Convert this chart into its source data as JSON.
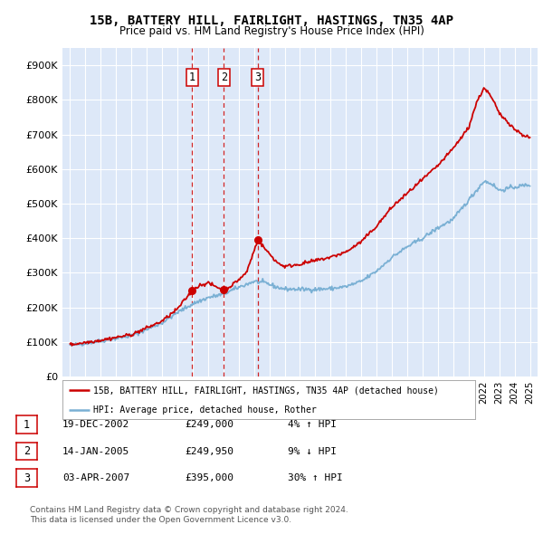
{
  "title": "15B, BATTERY HILL, FAIRLIGHT, HASTINGS, TN35 4AP",
  "subtitle": "Price paid vs. HM Land Registry's House Price Index (HPI)",
  "bg_color": "#dde8f8",
  "hpi_color": "#7ab0d4",
  "sale_color": "#cc0000",
  "dashed_color": "#cc0000",
  "ylim": [
    0,
    950000
  ],
  "yticks": [
    0,
    100000,
    200000,
    300000,
    400000,
    500000,
    600000,
    700000,
    800000,
    900000
  ],
  "ytick_labels": [
    "£0",
    "£100K",
    "£200K",
    "£300K",
    "£400K",
    "£500K",
    "£600K",
    "£700K",
    "£800K",
    "£900K"
  ],
  "xlim_start": 1994.5,
  "xlim_end": 2025.5,
  "xticks": [
    1995,
    1996,
    1997,
    1998,
    1999,
    2000,
    2001,
    2002,
    2003,
    2004,
    2005,
    2006,
    2007,
    2008,
    2009,
    2010,
    2011,
    2012,
    2013,
    2014,
    2015,
    2016,
    2017,
    2018,
    2019,
    2020,
    2021,
    2022,
    2023,
    2024,
    2025
  ],
  "sales": [
    {
      "date_num": 2002.97,
      "price": 249000,
      "label": "1"
    },
    {
      "date_num": 2005.04,
      "price": 249950,
      "label": "2"
    },
    {
      "date_num": 2007.25,
      "price": 395000,
      "label": "3"
    }
  ],
  "legend_sale_label": "15B, BATTERY HILL, FAIRLIGHT, HASTINGS, TN35 4AP (detached house)",
  "legend_hpi_label": "HPI: Average price, detached house, Rother",
  "footer1": "Contains HM Land Registry data © Crown copyright and database right 2024.",
  "footer2": "This data is licensed under the Open Government Licence v3.0.",
  "table": [
    {
      "num": "1",
      "date": "19-DEC-2002",
      "price": "£249,000",
      "change": "4% ↑ HPI"
    },
    {
      "num": "2",
      "date": "14-JAN-2005",
      "price": "£249,950",
      "change": "9% ↓ HPI"
    },
    {
      "num": "3",
      "date": "03-APR-2007",
      "price": "£395,000",
      "change": "30% ↑ HPI"
    }
  ]
}
